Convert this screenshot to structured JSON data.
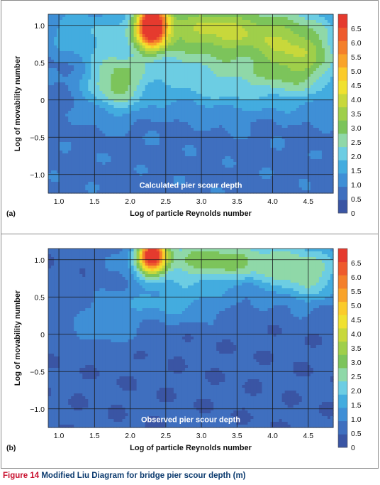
{
  "caption": {
    "number": "Figure 14",
    "text": "Modified Liu Diagram for bridge pier scour depth (m)"
  },
  "colors": [
    "#3a55a4",
    "#3f6fbf",
    "#3f8fd6",
    "#43acdf",
    "#6ccde3",
    "#8fd8a8",
    "#7cc45b",
    "#9fcf4a",
    "#c8d83b",
    "#f0e12f",
    "#fbcb2a",
    "#f9a32a",
    "#f47f2b",
    "#ee5a2d",
    "#e53a2e"
  ],
  "chart_data": [
    {
      "type": "heatmap",
      "panel_label": "(a)",
      "annotation": "Calculated pier scour depth",
      "xlabel": "Log of particle Reynolds number",
      "ylabel": "Log of movability number",
      "xlim": [
        0.85,
        4.85
      ],
      "ylim": [
        -1.25,
        1.15
      ],
      "xticks": [
        "1.0",
        "1.5",
        "2.0",
        "2.5",
        "3.0",
        "3.5",
        "4.0",
        "4.5"
      ],
      "xtick_values": [
        1.0,
        1.5,
        2.0,
        2.5,
        3.0,
        3.5,
        4.0,
        4.5
      ],
      "yticks": [
        "1.0",
        "0.5",
        "0",
        "−0.5",
        "−1.0"
      ],
      "ytick_values": [
        1.0,
        0.5,
        0,
        -0.5,
        -1.0
      ],
      "colorbar": {
        "label_values": [
          6.5,
          6.0,
          5.5,
          5.0,
          4.5,
          4.0,
          3.5,
          3.0,
          2.5,
          2.0,
          1.5,
          1.0,
          0.5,
          0
        ],
        "labels": [
          "6.5",
          "6.0",
          "5.5",
          "5.0",
          "4.5",
          "4.0",
          "3.5",
          "3.0",
          "2.5",
          "2.0",
          "1.5",
          "1.0",
          "0.5",
          "0"
        ],
        "range": [
          0,
          7
        ]
      },
      "fields": {
        "base": 0.8,
        "peaks": [
          {
            "x": 2.3,
            "y": 1.0,
            "value": 6.2,
            "sx": 0.22,
            "sy": 0.3
          },
          {
            "x": 3.2,
            "y": 0.95,
            "value": 3.0,
            "sx": 1.1,
            "sy": 0.4
          },
          {
            "x": 4.4,
            "y": 0.6,
            "value": 2.2,
            "sx": 0.6,
            "sy": 0.5
          },
          {
            "x": 1.8,
            "y": 0.25,
            "value": 2.0,
            "sx": 0.4,
            "sy": 0.4
          },
          {
            "x": 3.3,
            "y": 0.25,
            "value": 1.3,
            "sx": 1.2,
            "sy": 0.4
          },
          {
            "x": 1.3,
            "y": 0.9,
            "value": 0.9,
            "sx": 0.5,
            "sy": 0.3
          }
        ]
      }
    },
    {
      "type": "heatmap",
      "panel_label": "(b)",
      "annotation": "Observed pier scour depth",
      "xlabel": "Log of particle Reynolds number",
      "ylabel": "Log of movability number",
      "xlim": [
        0.85,
        4.85
      ],
      "ylim": [
        -1.25,
        1.15
      ],
      "xticks": [
        "1.0",
        "1.5",
        "2.0",
        "2.5",
        "3.0",
        "3.5",
        "4.0",
        "4.5"
      ],
      "xtick_values": [
        1.0,
        1.5,
        2.0,
        2.5,
        3.0,
        3.5,
        4.0,
        4.5
      ],
      "yticks": [
        "1.0",
        "0.5",
        "0",
        "−0.5",
        "−1.0"
      ],
      "ytick_values": [
        1.0,
        0.5,
        0,
        -0.5,
        -1.0
      ],
      "colorbar": {
        "label_values": [
          6.5,
          6.0,
          5.5,
          5.0,
          4.5,
          4.0,
          3.5,
          3.0,
          2.5,
          2.0,
          1.5,
          1.0,
          0.5,
          0
        ],
        "labels": [
          "6.5",
          "6.0",
          "5.5",
          "5.0",
          "4.5",
          "4.0",
          "3.5",
          "3.0",
          "2.5",
          "2.0",
          "1.5",
          "1.0",
          "0.5",
          "0"
        ],
        "range": [
          0,
          7
        ]
      },
      "fields": {
        "base": 0.55,
        "peaks": [
          {
            "x": 2.3,
            "y": 1.05,
            "value": 6.0,
            "sx": 0.2,
            "sy": 0.22
          },
          {
            "x": 3.2,
            "y": 1.0,
            "value": 2.6,
            "sx": 1.0,
            "sy": 0.3
          },
          {
            "x": 4.5,
            "y": 0.8,
            "value": 1.8,
            "sx": 0.6,
            "sy": 0.4
          },
          {
            "x": 2.6,
            "y": 0.45,
            "value": 1.0,
            "sx": 0.8,
            "sy": 0.3
          },
          {
            "x": 1.6,
            "y": 0.1,
            "value": 0.7,
            "sx": 0.5,
            "sy": 0.3
          }
        ]
      }
    }
  ]
}
